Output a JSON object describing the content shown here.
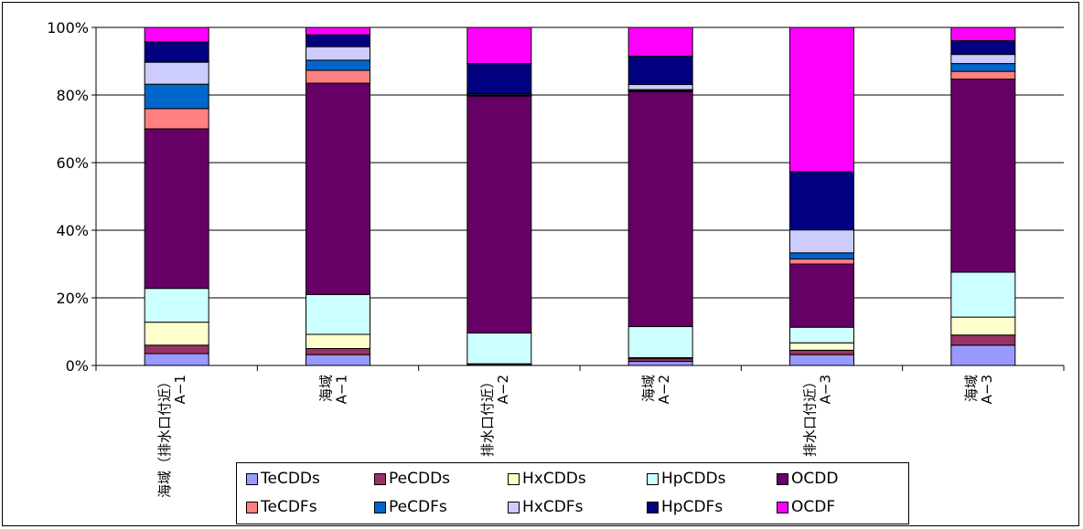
{
  "chart_data": {
    "type": "bar",
    "stacked": true,
    "normalized": true,
    "title": "",
    "xlabel": "",
    "ylabel": "",
    "ylim": [
      0,
      100
    ],
    "yticks": [
      "0%",
      "20%",
      "40%",
      "60%",
      "80%",
      "100%"
    ],
    "grid": true,
    "legend_position": "bottom",
    "categories": [
      [
        "海域（排水口付近）",
        "A−1"
      ],
      [
        "海域",
        "A−1"
      ],
      [
        "排水口付近）",
        "A−2"
      ],
      [
        "海域",
        "A−2"
      ],
      [
        "排水口付近）",
        "A−3"
      ],
      [
        "海域",
        "A−3"
      ]
    ],
    "series": [
      {
        "name": "TeCDDs",
        "color": "#9999ff",
        "values": [
          3.5,
          3.2,
          0.3,
          1.2,
          3.2,
          6.0
        ]
      },
      {
        "name": "PeCDDs",
        "color": "#993366",
        "values": [
          2.5,
          1.8,
          0.1,
          0.8,
          1.3,
          3.0
        ]
      },
      {
        "name": "HxCDDs",
        "color": "#ffffcc",
        "values": [
          6.8,
          4.2,
          0.1,
          0.3,
          2.2,
          5.3
        ]
      },
      {
        "name": "HpCDDs",
        "color": "#ccffff",
        "values": [
          10.0,
          11.8,
          9.1,
          9.2,
          4.6,
          13.3
        ]
      },
      {
        "name": "OCDD",
        "color": "#660066",
        "values": [
          47.2,
          62.5,
          70.1,
          69.5,
          18.7,
          57.1
        ]
      },
      {
        "name": "TeCDFs",
        "color": "#ff8080",
        "values": [
          6.0,
          3.8,
          0.2,
          0.3,
          1.5,
          2.3
        ]
      },
      {
        "name": "PeCDFs",
        "color": "#0066cc",
        "values": [
          7.2,
          3.0,
          0.2,
          0.3,
          1.8,
          2.3
        ]
      },
      {
        "name": "HxCDFs",
        "color": "#ccccff",
        "values": [
          6.5,
          4.0,
          0.3,
          1.5,
          6.8,
          2.7
        ]
      },
      {
        "name": "HpCDFs",
        "color": "#000080",
        "values": [
          6.0,
          3.5,
          8.9,
          8.4,
          17.2,
          4.1
        ]
      },
      {
        "name": "OCDF",
        "color": "#ff00ff",
        "values": [
          4.3,
          2.2,
          10.7,
          8.5,
          42.7,
          3.9
        ]
      }
    ]
  }
}
